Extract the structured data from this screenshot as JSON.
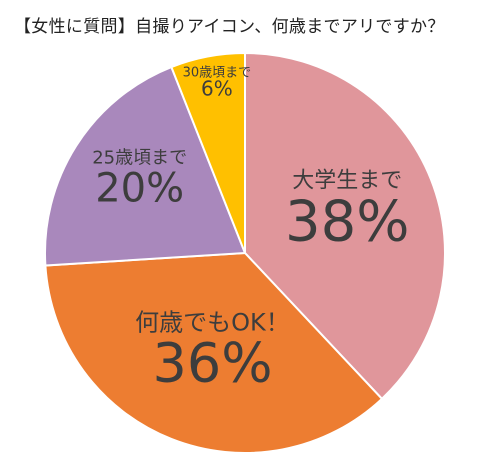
{
  "chart_data": {
    "type": "pie",
    "title": "【女性に質問】自撮りアイコン、何歳までアリですか？",
    "categories": [
      "大学生まで",
      "何歳でもOK！",
      "25歳頃まで",
      "30歳頃まで"
    ],
    "values": [
      38,
      36,
      20,
      6
    ],
    "value_labels": [
      "38%",
      "36%",
      "20%",
      "6%"
    ],
    "colors": [
      "#E0969B",
      "#ED7D31",
      "#A988BC",
      "#FFC000"
    ],
    "unit": "%",
    "start_angle": "12 o'clock",
    "direction": "clockwise",
    "legend": "none (labels inside slices)"
  }
}
